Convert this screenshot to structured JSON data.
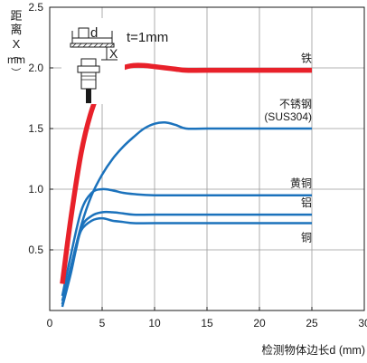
{
  "chart_data": {
    "type": "line",
    "title": "",
    "xlabel": "检测物体边长d (mm)",
    "ylabel_chars": [
      "距",
      "离",
      "X",
      "（",
      "mm",
      "）"
    ],
    "xlim": [
      0,
      30
    ],
    "ylim": [
      0,
      2.5
    ],
    "x_ticks": [
      0,
      5,
      10,
      15,
      20,
      25,
      30
    ],
    "y_ticks": [
      0.5,
      1.0,
      1.5,
      2.0,
      2.5
    ],
    "x_tick_labels": [
      "0",
      "5",
      "10",
      "15",
      "20",
      "25",
      "30"
    ],
    "y_tick_labels": [
      "0.5",
      "1.0",
      "1.5",
      "2.0",
      "2.5"
    ],
    "grid": true,
    "inset": {
      "label_d": "d",
      "label_x": "X",
      "label_t": "t=1mm"
    },
    "series": [
      {
        "name": "铁",
        "color": "#e8212a",
        "points": [
          [
            1.2,
            0.22
          ],
          [
            2,
            0.75
          ],
          [
            3,
            1.3
          ],
          [
            4,
            1.65
          ],
          [
            5,
            1.85
          ],
          [
            6,
            1.95
          ],
          [
            7,
            2.0
          ],
          [
            8,
            2.02
          ],
          [
            9,
            2.02
          ],
          [
            10,
            2.01
          ],
          [
            11,
            2.0
          ],
          [
            12,
            1.99
          ],
          [
            13,
            1.98
          ],
          [
            15,
            1.98
          ],
          [
            20,
            1.98
          ],
          [
            25,
            1.98
          ]
        ]
      },
      {
        "name": "不锈钢",
        "name_line2": "(SUS304)",
        "color": "#1b72bc",
        "points": [
          [
            1.2,
            0.08
          ],
          [
            2,
            0.35
          ],
          [
            3,
            0.7
          ],
          [
            4,
            0.95
          ],
          [
            5,
            1.12
          ],
          [
            6,
            1.25
          ],
          [
            7,
            1.35
          ],
          [
            8,
            1.43
          ],
          [
            9,
            1.5
          ],
          [
            10,
            1.54
          ],
          [
            11,
            1.55
          ],
          [
            12,
            1.53
          ],
          [
            13,
            1.5
          ],
          [
            15,
            1.5
          ],
          [
            20,
            1.5
          ],
          [
            25,
            1.5
          ]
        ]
      },
      {
        "name": "黄铜",
        "color": "#1b72bc",
        "points": [
          [
            1.2,
            0.12
          ],
          [
            2,
            0.45
          ],
          [
            3,
            0.82
          ],
          [
            4,
            0.97
          ],
          [
            5,
            1.0
          ],
          [
            6,
            0.99
          ],
          [
            7,
            0.97
          ],
          [
            8,
            0.96
          ],
          [
            10,
            0.95
          ],
          [
            15,
            0.95
          ],
          [
            20,
            0.95
          ],
          [
            25,
            0.95
          ]
        ]
      },
      {
        "name": "铝",
        "color": "#1b72bc",
        "points": [
          [
            1.2,
            0.05
          ],
          [
            2,
            0.35
          ],
          [
            3,
            0.68
          ],
          [
            4,
            0.78
          ],
          [
            5,
            0.81
          ],
          [
            6,
            0.81
          ],
          [
            7,
            0.8
          ],
          [
            8,
            0.79
          ],
          [
            10,
            0.79
          ],
          [
            15,
            0.79
          ],
          [
            20,
            0.79
          ],
          [
            25,
            0.79
          ]
        ]
      },
      {
        "name": "铜",
        "color": "#1b72bc",
        "points": [
          [
            1.2,
            0.03
          ],
          [
            2,
            0.3
          ],
          [
            2.5,
            0.5
          ],
          [
            3,
            0.66
          ],
          [
            4,
            0.74
          ],
          [
            5,
            0.76
          ],
          [
            6,
            0.74
          ],
          [
            7,
            0.73
          ],
          [
            8,
            0.72
          ],
          [
            10,
            0.72
          ],
          [
            15,
            0.72
          ],
          [
            20,
            0.72
          ],
          [
            25,
            0.72
          ]
        ]
      }
    ]
  }
}
